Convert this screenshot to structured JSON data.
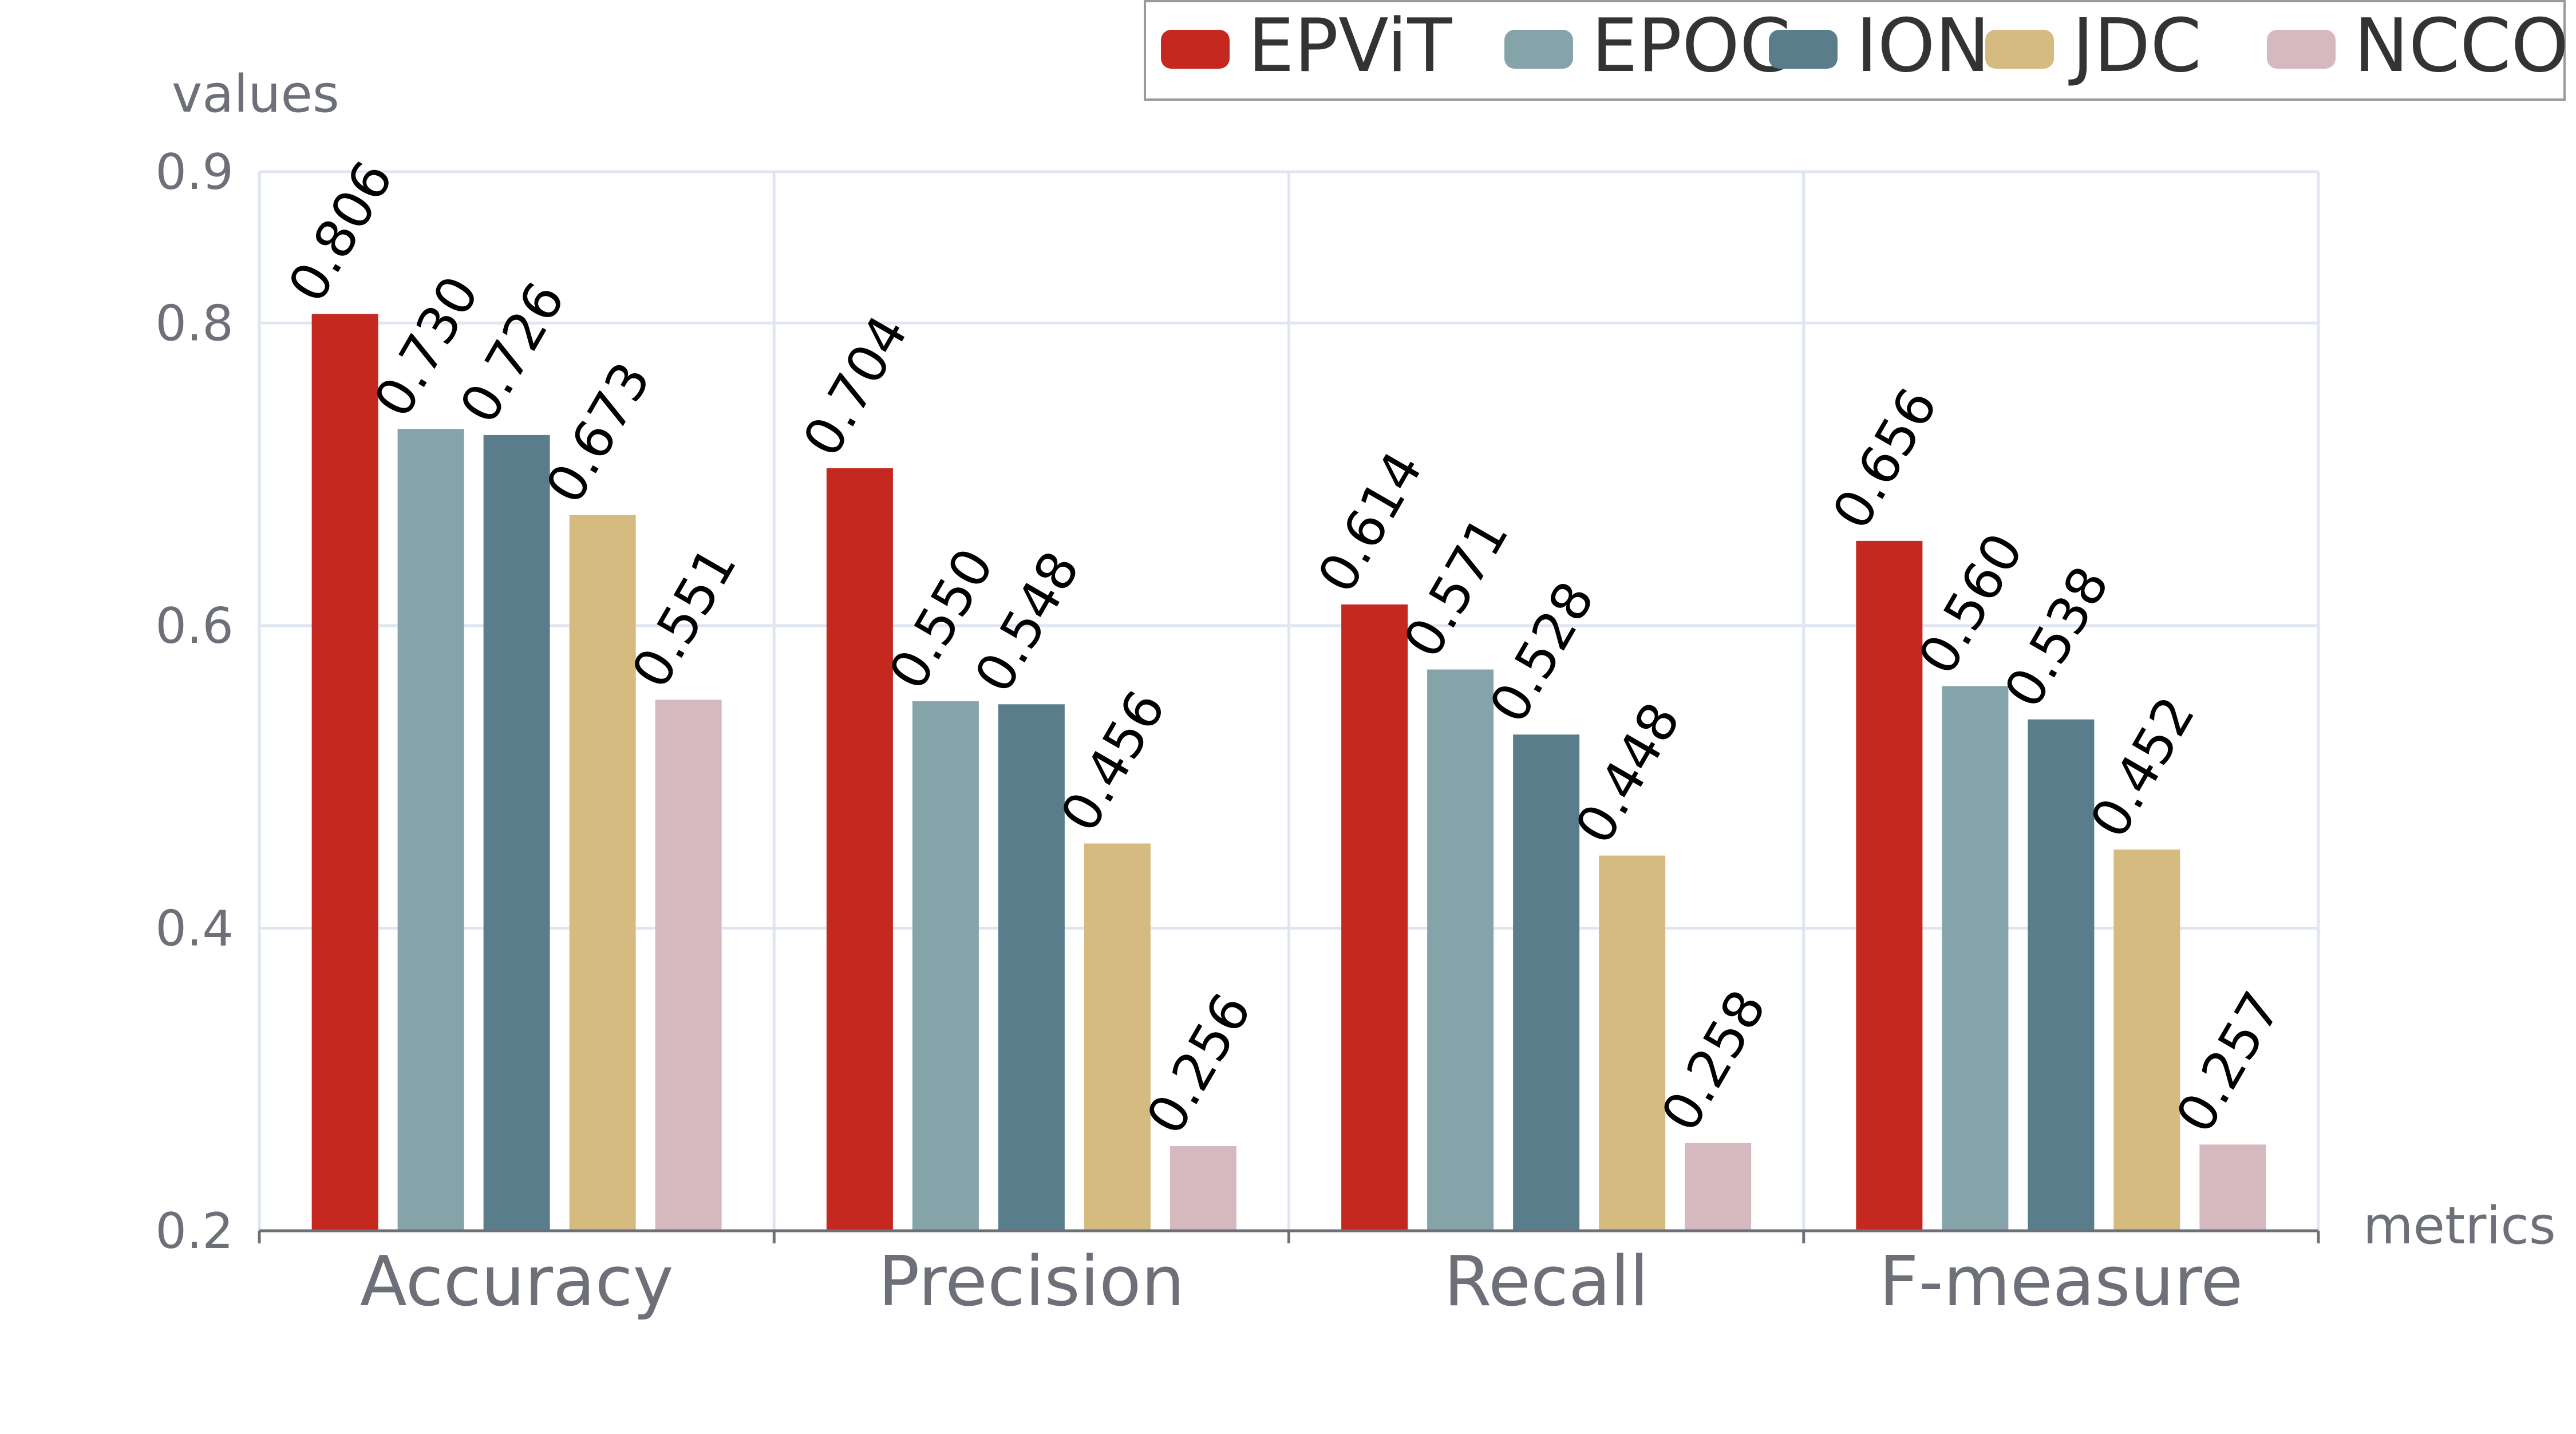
{
  "chart_data": {
    "type": "bar",
    "categories": [
      "Accuracy",
      "Precision",
      "Recall",
      "F-measure"
    ],
    "series": [
      {
        "name": "EPViT",
        "color": "#c4281f",
        "values": [
          0.806,
          0.704,
          0.614,
          0.656
        ],
        "labels": [
          "0.806",
          "0.704",
          "0.614",
          "0.656"
        ]
      },
      {
        "name": "EPOC",
        "color": "#85a4a9",
        "values": [
          0.73,
          0.55,
          0.571,
          0.56
        ],
        "labels": [
          "0.730",
          "0.550",
          "0.571",
          "0.560"
        ]
      },
      {
        "name": "ION",
        "color": "#5a7d8b",
        "values": [
          0.726,
          0.548,
          0.528,
          0.538
        ],
        "labels": [
          "0.726",
          "0.548",
          "0.528",
          "0.538"
        ]
      },
      {
        "name": "JDC",
        "color": "#d5bb80",
        "values": [
          0.673,
          0.456,
          0.448,
          0.452
        ],
        "labels": [
          "0.673",
          "0.456",
          "0.448",
          "0.452"
        ]
      },
      {
        "name": "NCCO",
        "color": "#d6b8bf",
        "values": [
          0.551,
          0.256,
          0.258,
          0.257
        ],
        "labels": [
          "0.551",
          "0.256",
          "0.258",
          "0.257"
        ]
      }
    ],
    "xlabel": "metrics",
    "ylabel": "values",
    "ylim": [
      0.2,
      0.9
    ],
    "yticks": [
      {
        "value": 0.2,
        "label": "0.2"
      },
      {
        "value": 0.4,
        "label": "0.4"
      },
      {
        "value": 0.6,
        "label": "0.6"
      },
      {
        "value": 0.8,
        "label": "0.8"
      },
      {
        "value": 0.9,
        "label": "0.9"
      }
    ],
    "grid": true,
    "legend_position": "top-right"
  }
}
